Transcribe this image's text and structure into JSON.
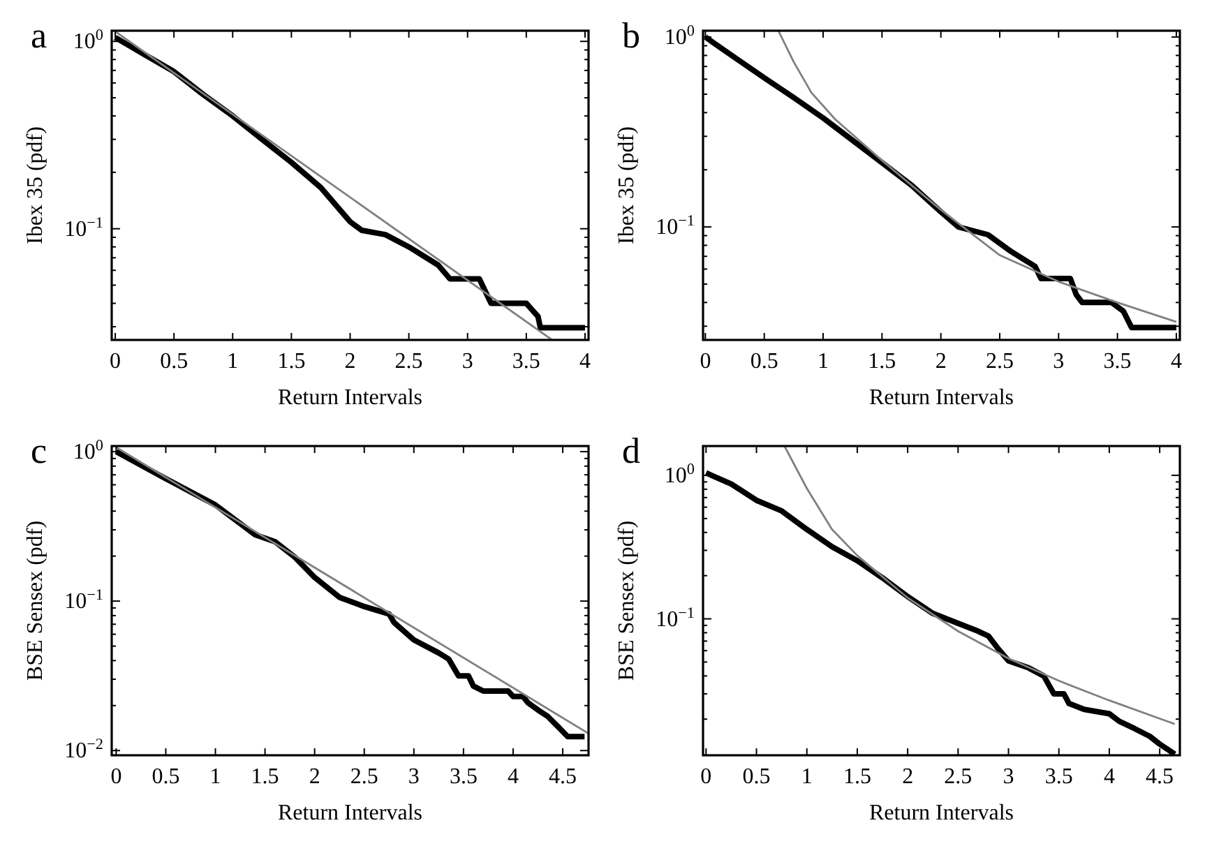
{
  "chart_data": [
    {
      "type": "line",
      "title": "a",
      "xlabel": "Return Intervals",
      "ylabel": "Ibex 35 (pdf)",
      "log": "y",
      "grid": false,
      "xlim": [
        -0.03,
        4.03
      ],
      "xticks": [
        {
          "value": 0,
          "label": "0"
        },
        {
          "value": 0.5,
          "label": "0.5"
        },
        {
          "value": 1,
          "label": "1"
        },
        {
          "value": 1.5,
          "label": "1.5"
        },
        {
          "value": 2,
          "label": "2"
        },
        {
          "value": 2.5,
          "label": "2.5"
        },
        {
          "value": 3,
          "label": "3"
        },
        {
          "value": 3.5,
          "label": "3.5"
        },
        {
          "value": 4,
          "label": "4"
        }
      ],
      "ylim": [
        0.0255,
        1.14
      ],
      "yticks": [
        {
          "value": 0.03,
          "label": null
        },
        {
          "value": 0.04,
          "label": null
        },
        {
          "value": 0.05,
          "label": null
        },
        {
          "value": 0.06,
          "label": null
        },
        {
          "value": 0.07,
          "label": null
        },
        {
          "value": 0.08,
          "label": null
        },
        {
          "value": 0.09,
          "label": null
        },
        {
          "value": 0.1,
          "label": "10$^{−1}$"
        },
        {
          "value": 0.2,
          "label": null
        },
        {
          "value": 0.3,
          "label": null
        },
        {
          "value": 0.4,
          "label": null
        },
        {
          "value": 0.5,
          "label": null
        },
        {
          "value": 0.6,
          "label": null
        },
        {
          "value": 0.7,
          "label": null
        },
        {
          "value": 0.8,
          "label": null
        },
        {
          "value": 0.9,
          "label": null
        },
        {
          "value": 1,
          "label": "10$^{0}$"
        }
      ],
      "series": [
        {
          "color": "#000000",
          "x": [
            0,
            0.25,
            0.5,
            0.75,
            1,
            1.25,
            1.5,
            1.75,
            2,
            2.1,
            2.3,
            2.5,
            2.75,
            2.85,
            3.1,
            3.2,
            3.5,
            3.6,
            3.62,
            4
          ],
          "values": [
            1.05,
            0.85,
            0.69,
            0.52,
            0.4,
            0.3,
            0.226,
            0.166,
            0.109,
            0.098,
            0.093,
            0.08,
            0.064,
            0.054,
            0.054,
            0.04,
            0.04,
            0.034,
            0.0296,
            0.0296
          ]
        },
        {
          "color": "#808080",
          "x": [
            0,
            3.72
          ],
          "values": [
            1.13,
            0.0255
          ]
        }
      ]
    },
    {
      "type": "line",
      "title": "b",
      "xlabel": "Return Intervals",
      "ylabel": "Ibex 35 (pdf)",
      "log": "y",
      "grid": false,
      "xlim": [
        -0.02,
        4.03
      ],
      "xticks": [
        {
          "value": 0,
          "label": "0"
        },
        {
          "value": 0.5,
          "label": "0.5"
        },
        {
          "value": 1,
          "label": "1"
        },
        {
          "value": 1.5,
          "label": "1.5"
        },
        {
          "value": 2,
          "label": "2"
        },
        {
          "value": 2.5,
          "label": "2.5"
        },
        {
          "value": 3,
          "label": "3"
        },
        {
          "value": 3.5,
          "label": "3.5"
        },
        {
          "value": 4,
          "label": "4"
        }
      ],
      "ylim": [
        0.0254,
        1.08
      ],
      "yticks": [
        {
          "value": 0.03,
          "label": null
        },
        {
          "value": 0.04,
          "label": null
        },
        {
          "value": 0.05,
          "label": null
        },
        {
          "value": 0.06,
          "label": null
        },
        {
          "value": 0.07,
          "label": null
        },
        {
          "value": 0.08,
          "label": null
        },
        {
          "value": 0.09,
          "label": null
        },
        {
          "value": 0.1,
          "label": "10$^{−1}$"
        },
        {
          "value": 0.2,
          "label": null
        },
        {
          "value": 0.3,
          "label": null
        },
        {
          "value": 0.4,
          "label": null
        },
        {
          "value": 0.5,
          "label": null
        },
        {
          "value": 0.6,
          "label": null
        },
        {
          "value": 0.7,
          "label": null
        },
        {
          "value": 0.8,
          "label": null
        },
        {
          "value": 0.9,
          "label": null
        },
        {
          "value": 1,
          "label": "10$^{0}$"
        }
      ],
      "series": [
        {
          "color": "#000000",
          "x": [
            0,
            0.25,
            0.5,
            0.75,
            1,
            1.25,
            1.5,
            1.75,
            2,
            2.15,
            2.4,
            2.6,
            2.8,
            2.85,
            3.1,
            3.15,
            3.2,
            3.45,
            3.55,
            3.62,
            4
          ],
          "values": [
            1.0,
            0.78,
            0.61,
            0.48,
            0.375,
            0.286,
            0.218,
            0.166,
            0.12,
            0.1,
            0.091,
            0.074,
            0.062,
            0.0535,
            0.0535,
            0.044,
            0.04,
            0.04,
            0.036,
            0.0295,
            0.0295
          ]
        },
        {
          "color": "#808080",
          "x": [
            0.62,
            0.75,
            0.9,
            1.1,
            1.5,
            2,
            2.5,
            3,
            3.5,
            4
          ],
          "values": [
            1.08,
            0.74,
            0.51,
            0.37,
            0.224,
            0.123,
            0.071,
            0.0515,
            0.04,
            0.0316
          ]
        }
      ]
    },
    {
      "type": "line",
      "title": "c",
      "xlabel": "Return Intervals",
      "ylabel": "BSE Sensex (pdf)",
      "log": "y",
      "grid": false,
      "xlim": [
        -0.045,
        4.76
      ],
      "xticks": [
        {
          "value": 0,
          "label": "0"
        },
        {
          "value": 0.5,
          "label": "0.5"
        },
        {
          "value": 1,
          "label": "1"
        },
        {
          "value": 1.5,
          "label": "1.5"
        },
        {
          "value": 2,
          "label": "2"
        },
        {
          "value": 2.5,
          "label": "2.5"
        },
        {
          "value": 3,
          "label": "3"
        },
        {
          "value": 3.5,
          "label": "3.5"
        },
        {
          "value": 4,
          "label": "4"
        },
        {
          "value": 4.5,
          "label": "4.5"
        }
      ],
      "ylim": [
        0.0093,
        1.09
      ],
      "yticks": [
        {
          "value": 0.01,
          "label": "10$^{−2}$"
        },
        {
          "value": 0.02,
          "label": null
        },
        {
          "value": 0.03,
          "label": null
        },
        {
          "value": 0.04,
          "label": null
        },
        {
          "value": 0.05,
          "label": null
        },
        {
          "value": 0.06,
          "label": null
        },
        {
          "value": 0.07,
          "label": null
        },
        {
          "value": 0.08,
          "label": null
        },
        {
          "value": 0.09,
          "label": null
        },
        {
          "value": 0.1,
          "label": "10$^{−1}$"
        },
        {
          "value": 0.2,
          "label": null
        },
        {
          "value": 0.3,
          "label": null
        },
        {
          "value": 0.4,
          "label": null
        },
        {
          "value": 0.5,
          "label": null
        },
        {
          "value": 0.6,
          "label": null
        },
        {
          "value": 0.7,
          "label": null
        },
        {
          "value": 0.8,
          "label": null
        },
        {
          "value": 0.9,
          "label": null
        },
        {
          "value": 1,
          "label": "10$^{0}$"
        }
      ],
      "series": [
        {
          "color": "#000000",
          "x": [
            0,
            0.5,
            1,
            1.4,
            1.6,
            1.8,
            2,
            2.25,
            2.5,
            2.75,
            2.8,
            3,
            3.25,
            3.35,
            3.45,
            3.55,
            3.6,
            3.7,
            3.95,
            4,
            4.1,
            4.15,
            4.25,
            4.35,
            4.45,
            4.55,
            4.72
          ],
          "values": [
            1.0,
            0.66,
            0.44,
            0.278,
            0.25,
            0.197,
            0.144,
            0.106,
            0.092,
            0.082,
            0.072,
            0.055,
            0.045,
            0.041,
            0.0316,
            0.0316,
            0.027,
            0.025,
            0.025,
            0.023,
            0.023,
            0.0209,
            0.0187,
            0.0169,
            0.0145,
            0.0124,
            0.0124
          ]
        },
        {
          "color": "#808080",
          "x": [
            0,
            4.76
          ],
          "values": [
            1.07,
            0.013
          ]
        }
      ]
    },
    {
      "type": "line",
      "title": "d",
      "xlabel": "Return Intervals",
      "ylabel": "BSE Sensex (pdf)",
      "log": "y",
      "grid": false,
      "xlim": [
        -0.03,
        4.7
      ],
      "xticks": [
        {
          "value": 0,
          "label": "0"
        },
        {
          "value": 0.5,
          "label": "0.5"
        },
        {
          "value": 1,
          "label": "1"
        },
        {
          "value": 1.5,
          "label": "1.5"
        },
        {
          "value": 2,
          "label": "2"
        },
        {
          "value": 2.5,
          "label": "2.5"
        },
        {
          "value": 3,
          "label": "3"
        },
        {
          "value": 3.5,
          "label": "3.5"
        },
        {
          "value": 4,
          "label": "4"
        },
        {
          "value": 4.5,
          "label": "4.5"
        }
      ],
      "ylim": [
        0.0112,
        1.6
      ],
      "yticks": [
        {
          "value": 0.02,
          "label": null
        },
        {
          "value": 0.03,
          "label": null
        },
        {
          "value": 0.04,
          "label": null
        },
        {
          "value": 0.05,
          "label": null
        },
        {
          "value": 0.06,
          "label": null
        },
        {
          "value": 0.07,
          "label": null
        },
        {
          "value": 0.08,
          "label": null
        },
        {
          "value": 0.09,
          "label": null
        },
        {
          "value": 0.1,
          "label": "10$^{−1}$"
        },
        {
          "value": 0.2,
          "label": null
        },
        {
          "value": 0.3,
          "label": null
        },
        {
          "value": 0.4,
          "label": null
        },
        {
          "value": 0.5,
          "label": null
        },
        {
          "value": 0.6,
          "label": null
        },
        {
          "value": 0.7,
          "label": null
        },
        {
          "value": 0.8,
          "label": null
        },
        {
          "value": 0.9,
          "label": null
        },
        {
          "value": 1,
          "label": "10$^{0}$"
        }
      ],
      "series": [
        {
          "color": "#000000",
          "x": [
            0,
            0.25,
            0.5,
            0.75,
            1,
            1.25,
            1.5,
            1.75,
            2,
            2.25,
            2.5,
            2.7,
            2.8,
            2.9,
            3,
            3.2,
            3.35,
            3.45,
            3.55,
            3.6,
            3.75,
            4,
            4.1,
            4.25,
            4.4,
            4.5,
            4.65
          ],
          "values": [
            1.04,
            0.87,
            0.67,
            0.565,
            0.42,
            0.318,
            0.254,
            0.193,
            0.143,
            0.109,
            0.093,
            0.082,
            0.076,
            0.0615,
            0.051,
            0.0455,
            0.04,
            0.03,
            0.03,
            0.0257,
            0.0234,
            0.0218,
            0.0193,
            0.0172,
            0.0152,
            0.0134,
            0.0114
          ]
        },
        {
          "color": "#808080",
          "x": [
            0.78,
            1,
            1.25,
            1.5,
            2,
            2.5,
            3,
            3.5,
            4,
            4.65
          ],
          "values": [
            1.59,
            0.81,
            0.42,
            0.276,
            0.14,
            0.082,
            0.053,
            0.037,
            0.027,
            0.0185
          ]
        }
      ]
    }
  ]
}
